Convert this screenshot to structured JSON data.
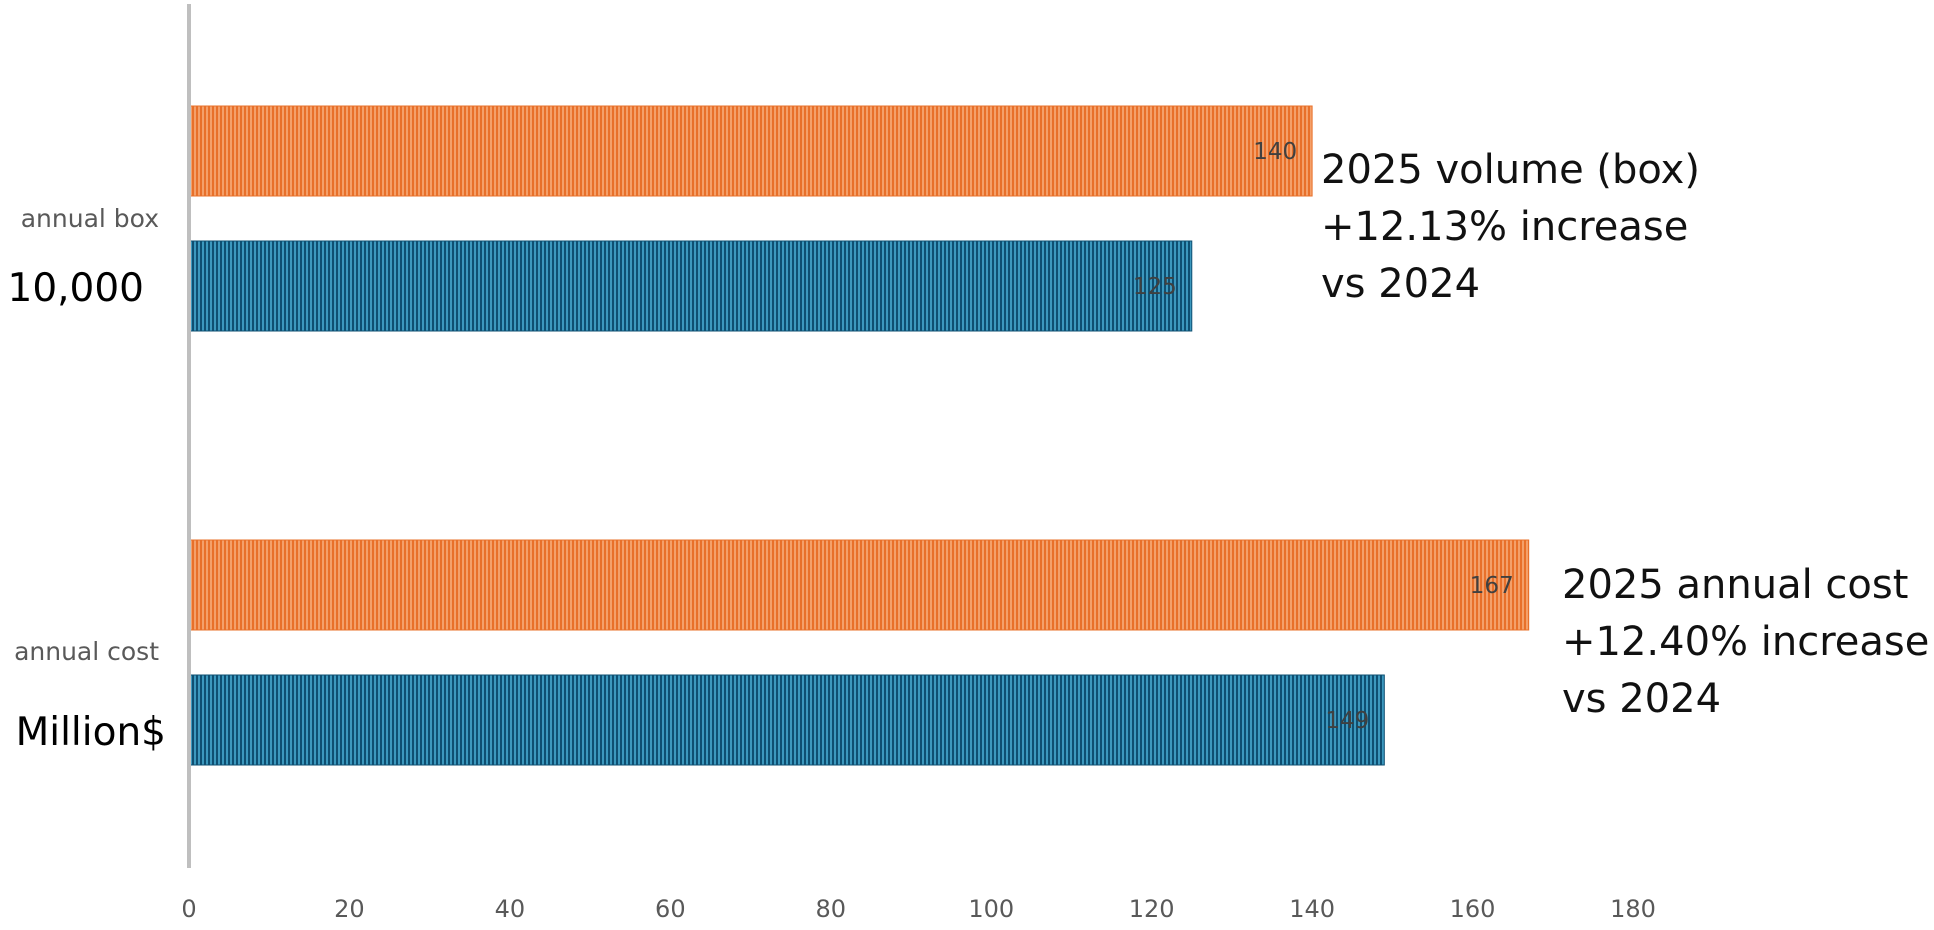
{
  "chart_data": {
    "type": "bar",
    "orientation": "horizontal",
    "grid": false,
    "legend": "none",
    "xlim": [
      0,
      180
    ],
    "x_ticks": [
      0,
      20,
      40,
      60,
      80,
      100,
      120,
      140,
      160,
      180
    ],
    "categories": [
      {
        "label": "annual box",
        "unit": "10,000"
      },
      {
        "label": "annual cost",
        "unit": "Million$"
      }
    ],
    "series": [
      {
        "values": [
          140,
          167
        ],
        "color": "#ED7D31"
      },
      {
        "values": [
          125,
          149
        ],
        "color": "#1F6F95"
      }
    ],
    "annotations": [
      [
        "2025 volume (box)",
        "+12.13% increase",
        "vs 2024"
      ],
      [
        "2025 annual cost",
        "+12.40% increase",
        "vs 2024"
      ]
    ]
  }
}
